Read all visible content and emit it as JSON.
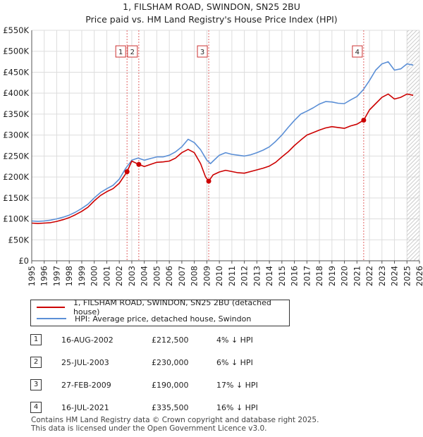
{
  "title": "1, FILSHAM ROAD, SWINDON, SN25 2BU",
  "subtitle": "Price paid vs. HM Land Registry's House Price Index (HPI)",
  "colors": {
    "property": "#cc0000",
    "hpi": "#5b8fd6"
  },
  "chart_data": {
    "type": "line",
    "title": "1, FILSHAM ROAD, SWINDON, SN25 2BU",
    "xlabel": "",
    "ylabel": "",
    "xlim": [
      1995,
      2026
    ],
    "ylim": [
      0,
      550000
    ],
    "y_ticks": [
      {
        "value": 0,
        "label": "£0"
      },
      {
        "value": 50000,
        "label": "£50K"
      },
      {
        "value": 100000,
        "label": "£100K"
      },
      {
        "value": 150000,
        "label": "£150K"
      },
      {
        "value": 200000,
        "label": "£200K"
      },
      {
        "value": 250000,
        "label": "£250K"
      },
      {
        "value": 300000,
        "label": "£300K"
      },
      {
        "value": 350000,
        "label": "£350K"
      },
      {
        "value": 400000,
        "label": "£400K"
      },
      {
        "value": 450000,
        "label": "£450K"
      },
      {
        "value": 500000,
        "label": "£500K"
      },
      {
        "value": 550000,
        "label": "£550K"
      }
    ],
    "x_ticks": [
      "1995",
      "1996",
      "1997",
      "1998",
      "1999",
      "2000",
      "2001",
      "2002",
      "2003",
      "2004",
      "2005",
      "2006",
      "2007",
      "2008",
      "2009",
      "2010",
      "2011",
      "2012",
      "2013",
      "2014",
      "2015",
      "2016",
      "2017",
      "2018",
      "2019",
      "2020",
      "2021",
      "2022",
      "2023",
      "2024",
      "2025",
      "2026"
    ],
    "grid": true,
    "hatch_from": 2025.0,
    "series": [
      {
        "name": "1, FILSHAM ROAD, SWINDON, SN25 2BU (detached house)",
        "color": "#cc0000",
        "x": [
          1995.0,
          1995.5,
          1996.0,
          1996.5,
          1997.0,
          1997.5,
          1998.0,
          1998.5,
          1999.0,
          1999.5,
          2000.0,
          2000.5,
          2001.0,
          2001.5,
          2002.0,
          2002.62,
          2003.0,
          2003.56,
          2004.0,
          2004.5,
          2005.0,
          2005.5,
          2006.0,
          2006.5,
          2007.0,
          2007.5,
          2008.0,
          2008.5,
          2008.9,
          2009.15,
          2009.5,
          2010.0,
          2010.5,
          2011.0,
          2011.5,
          2012.0,
          2012.5,
          2013.0,
          2013.5,
          2014.0,
          2014.5,
          2015.0,
          2015.5,
          2016.0,
          2016.5,
          2017.0,
          2017.5,
          2018.0,
          2018.5,
          2019.0,
          2019.5,
          2020.0,
          2020.5,
          2021.0,
          2021.54,
          2022.0,
          2022.5,
          2023.0,
          2023.5,
          2024.0,
          2024.5,
          2025.0,
          2025.5
        ],
        "values": [
          90000,
          89000,
          90000,
          91000,
          94000,
          98000,
          103000,
          110000,
          118000,
          128000,
          143000,
          156000,
          165000,
          172000,
          185000,
          212500,
          238000,
          230000,
          225000,
          230000,
          235000,
          236000,
          238000,
          245000,
          258000,
          266000,
          258000,
          232000,
          200000,
          190000,
          205000,
          212000,
          216000,
          213000,
          210000,
          209000,
          213000,
          217000,
          221000,
          226000,
          235000,
          248000,
          260000,
          275000,
          288000,
          300000,
          306000,
          312000,
          317000,
          320000,
          318000,
          316000,
          322000,
          326000,
          335500,
          360000,
          375000,
          390000,
          398000,
          386000,
          390000,
          398000,
          395000
        ]
      },
      {
        "name": "HPI: Average price, detached house, Swindon",
        "color": "#5b8fd6",
        "x": [
          1995.0,
          1995.5,
          1996.0,
          1996.5,
          1997.0,
          1997.5,
          1998.0,
          1998.5,
          1999.0,
          1999.5,
          2000.0,
          2000.5,
          2001.0,
          2001.5,
          2002.0,
          2002.5,
          2003.0,
          2003.5,
          2004.0,
          2004.5,
          2005.0,
          2005.5,
          2006.0,
          2006.5,
          2007.0,
          2007.5,
          2008.0,
          2008.5,
          2009.0,
          2009.3,
          2009.5,
          2010.0,
          2010.5,
          2011.0,
          2011.5,
          2012.0,
          2012.5,
          2013.0,
          2013.5,
          2014.0,
          2014.5,
          2015.0,
          2015.5,
          2016.0,
          2016.5,
          2017.0,
          2017.5,
          2018.0,
          2018.5,
          2019.0,
          2019.5,
          2020.0,
          2020.5,
          2021.0,
          2021.5,
          2022.0,
          2022.5,
          2023.0,
          2023.5,
          2024.0,
          2024.5,
          2025.0,
          2025.5
        ],
        "values": [
          95000,
          94000,
          95000,
          97000,
          100000,
          104000,
          109000,
          116000,
          125000,
          135000,
          150000,
          163000,
          172000,
          180000,
          195000,
          220000,
          240000,
          245000,
          240000,
          244000,
          248000,
          248000,
          252000,
          260000,
          272000,
          290000,
          282000,
          265000,
          240000,
          232000,
          238000,
          252000,
          258000,
          254000,
          252000,
          250000,
          253000,
          258000,
          264000,
          272000,
          285000,
          300000,
          318000,
          335000,
          350000,
          357000,
          365000,
          374000,
          380000,
          379000,
          376000,
          375000,
          384000,
          392000,
          408000,
          430000,
          455000,
          470000,
          475000,
          455000,
          458000,
          470000,
          467000
        ]
      }
    ],
    "sales": [
      {
        "label": "1",
        "x": 2002.62,
        "price": 212500
      },
      {
        "label": "2",
        "x": 2003.56,
        "price": 230000
      },
      {
        "label": "3",
        "x": 2009.15,
        "price": 190000
      },
      {
        "label": "4",
        "x": 2021.54,
        "price": 335500
      }
    ]
  },
  "legend": {
    "property": "1, FILSHAM ROAD, SWINDON, SN25 2BU (detached house)",
    "hpi": "HPI: Average price, detached house, Swindon"
  },
  "sales_table": [
    {
      "num": "1",
      "date": "16-AUG-2002",
      "price": "£212,500",
      "hpi": "4% ↓ HPI"
    },
    {
      "num": "2",
      "date": "25-JUL-2003",
      "price": "£230,000",
      "hpi": "6% ↓ HPI"
    },
    {
      "num": "3",
      "date": "27-FEB-2009",
      "price": "£190,000",
      "hpi": "17% ↓ HPI"
    },
    {
      "num": "4",
      "date": "16-JUL-2021",
      "price": "£335,500",
      "hpi": "16% ↓ HPI"
    }
  ],
  "footer": {
    "line1": "Contains HM Land Registry data © Crown copyright and database right 2025.",
    "line2": "This data is licensed under the Open Government Licence v3.0."
  }
}
